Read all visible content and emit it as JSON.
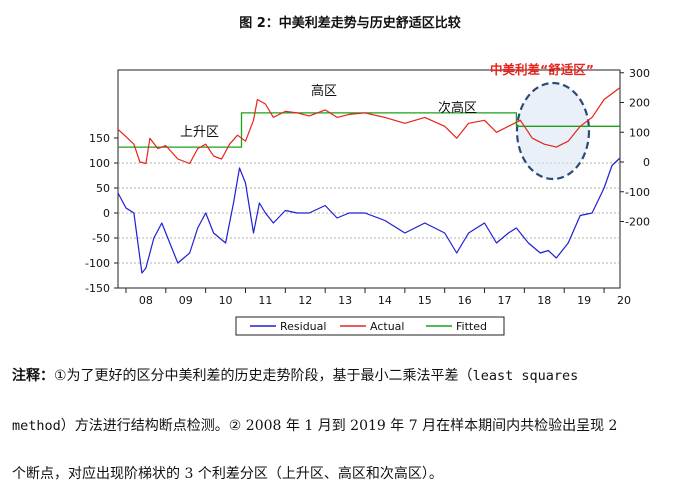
{
  "title": "图 2：中美利差走势与历史舒适区比较",
  "chart_data": {
    "type": "line",
    "x_ticks": [
      "08",
      "09",
      "10",
      "11",
      "12",
      "13",
      "14",
      "15",
      "16",
      "17",
      "18",
      "19",
      "20"
    ],
    "left_ticks": [
      150,
      100,
      50,
      0,
      -50,
      -100,
      -150
    ],
    "right_ticks": [
      300,
      200,
      100,
      0,
      -100,
      -200
    ],
    "annotations": [
      "上升区",
      "高区",
      "次高区",
      "中美利差“舒适区”"
    ],
    "legend": [
      "Residual",
      "Actual",
      "Fitted"
    ],
    "colors": {
      "residual": "#1f1fd6",
      "actual": "#e8231d",
      "fitted": "#1aa31a",
      "comfort_zone": "#2b4a7a"
    },
    "series": [
      {
        "name": "Actual",
        "axis": "right",
        "x": [
          2007.8,
          2008.0,
          2008.2,
          2008.35,
          2008.5,
          2008.6,
          2008.8,
          2009.0,
          2009.3,
          2009.6,
          2009.8,
          2010.0,
          2010.2,
          2010.4,
          2010.6,
          2010.8,
          2011.0,
          2011.2,
          2011.3,
          2011.5,
          2011.7,
          2012.0,
          2012.3,
          2012.6,
          2013.0,
          2013.3,
          2013.6,
          2014.0,
          2014.5,
          2015.0,
          2015.5,
          2016.0,
          2016.3,
          2016.6,
          2017.0,
          2017.3,
          2017.6,
          2017.9,
          2018.2,
          2018.5,
          2018.8,
          2019.1,
          2019.4,
          2019.7,
          2020.0,
          2020.2,
          2020.4
        ],
        "y": [
          110,
          85,
          60,
          0,
          -5,
          80,
          45,
          55,
          10,
          -5,
          45,
          60,
          20,
          10,
          60,
          90,
          70,
          140,
          210,
          195,
          150,
          170,
          165,
          155,
          175,
          150,
          160,
          165,
          150,
          130,
          150,
          120,
          80,
          130,
          140,
          100,
          120,
          140,
          80,
          60,
          50,
          70,
          120,
          150,
          210,
          230,
          250
        ]
      },
      {
        "name": "Fitted",
        "axis": "right",
        "x": [
          2007.8,
          2010.9,
          2010.9,
          2017.8,
          2017.8,
          2020.4
        ],
        "y": [
          50,
          50,
          165,
          165,
          120,
          120
        ]
      },
      {
        "name": "Residual",
        "axis": "left",
        "x": [
          2007.8,
          2008.0,
          2008.2,
          2008.3,
          2008.4,
          2008.5,
          2008.7,
          2008.9,
          2009.1,
          2009.3,
          2009.6,
          2009.8,
          2010.0,
          2010.2,
          2010.5,
          2010.7,
          2010.85,
          2011.0,
          2011.2,
          2011.35,
          2011.5,
          2011.7,
          2012.0,
          2012.3,
          2012.6,
          2013.0,
          2013.3,
          2013.6,
          2014.0,
          2014.5,
          2015.0,
          2015.5,
          2016.0,
          2016.3,
          2016.6,
          2017.0,
          2017.3,
          2017.6,
          2017.8,
          2018.1,
          2018.4,
          2018.6,
          2018.8,
          2019.1,
          2019.4,
          2019.7,
          2020.0,
          2020.2,
          2020.4
        ],
        "y": [
          40,
          10,
          0,
          -60,
          -120,
          -110,
          -50,
          -20,
          -60,
          -100,
          -80,
          -30,
          0,
          -40,
          -60,
          20,
          90,
          60,
          -40,
          20,
          0,
          -20,
          5,
          0,
          0,
          15,
          -10,
          0,
          0,
          -15,
          -40,
          -20,
          -40,
          -80,
          -40,
          -20,
          -60,
          -40,
          -30,
          -60,
          -80,
          -75,
          -90,
          -60,
          -5,
          0,
          50,
          95,
          110
        ]
      }
    ]
  },
  "note": {
    "label": "注释：",
    "seg1": "①为了更好的区分中美利差的历史走势阶段，基于最小二乘法平差（",
    "en1": "least squares",
    "en2": "method",
    "seg2": "）方法进行结构断点检测。② ",
    "n2008": "2008",
    "t1": " 年 ",
    "n1": "1",
    "t2": " 月到 ",
    "n2019": "2019",
    "t3": " 年 ",
    "n7": "7",
    "t4": " 月在样本期间内共检验出呈现 ",
    "n2": "2",
    "seg3": "个断点，对应出现阶梯状的 ",
    "n3": "3",
    "seg4": " 个利差分区（上升区、高区和次高区）。"
  }
}
